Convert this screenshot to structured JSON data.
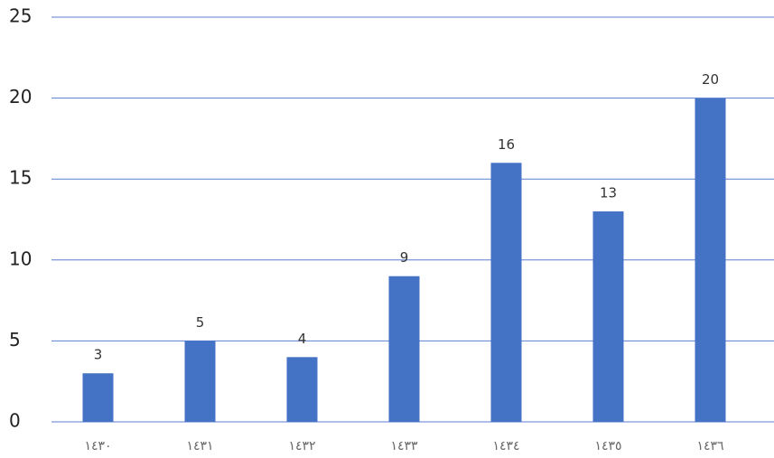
{
  "chart_data": {
    "type": "bar",
    "categories": [
      "١٤٣٠",
      "١٤٣١",
      "١٤٣٢",
      "١٤٣٣",
      "١٤٣٤",
      "١٤٣٥",
      "١٤٣٦"
    ],
    "values": [
      3,
      5,
      4,
      9,
      16,
      13,
      20
    ],
    "color": "#4472c4",
    "ylim": [
      0,
      25
    ],
    "yticks": [
      0,
      5,
      10,
      15,
      20,
      25
    ],
    "grid": true,
    "grid_color": "#5b7fd1"
  }
}
